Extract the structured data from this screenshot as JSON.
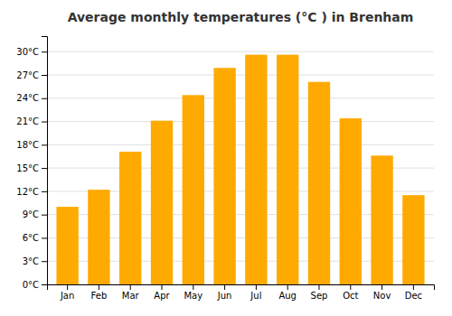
{
  "chart_data": {
    "type": "bar",
    "title": "Average monthly temperatures (°C ) in Brenham",
    "categories": [
      "Jan",
      "Feb",
      "Mar",
      "Apr",
      "May",
      "Jun",
      "Jul",
      "Aug",
      "Sep",
      "Oct",
      "Nov",
      "Dec"
    ],
    "values": [
      10.0,
      12.2,
      17.1,
      21.1,
      24.4,
      27.9,
      29.6,
      29.6,
      26.1,
      21.4,
      16.6,
      11.5
    ],
    "color": "#FFAA00",
    "ylim": [
      0,
      32
    ],
    "yticks": [
      {
        "value": 0,
        "label": "0°C"
      },
      {
        "value": 3,
        "label": "3°C"
      },
      {
        "value": 6,
        "label": "6°C"
      },
      {
        "value": 9,
        "label": "9°C"
      },
      {
        "value": 12,
        "label": "12°C"
      },
      {
        "value": 15,
        "label": "15°C"
      },
      {
        "value": 18,
        "label": "18°C"
      },
      {
        "value": 21,
        "label": "21°C"
      },
      {
        "value": 24,
        "label": "24°C"
      },
      {
        "value": 27,
        "label": "27°C"
      },
      {
        "value": 30,
        "label": "30°C"
      }
    ],
    "grid": true
  }
}
